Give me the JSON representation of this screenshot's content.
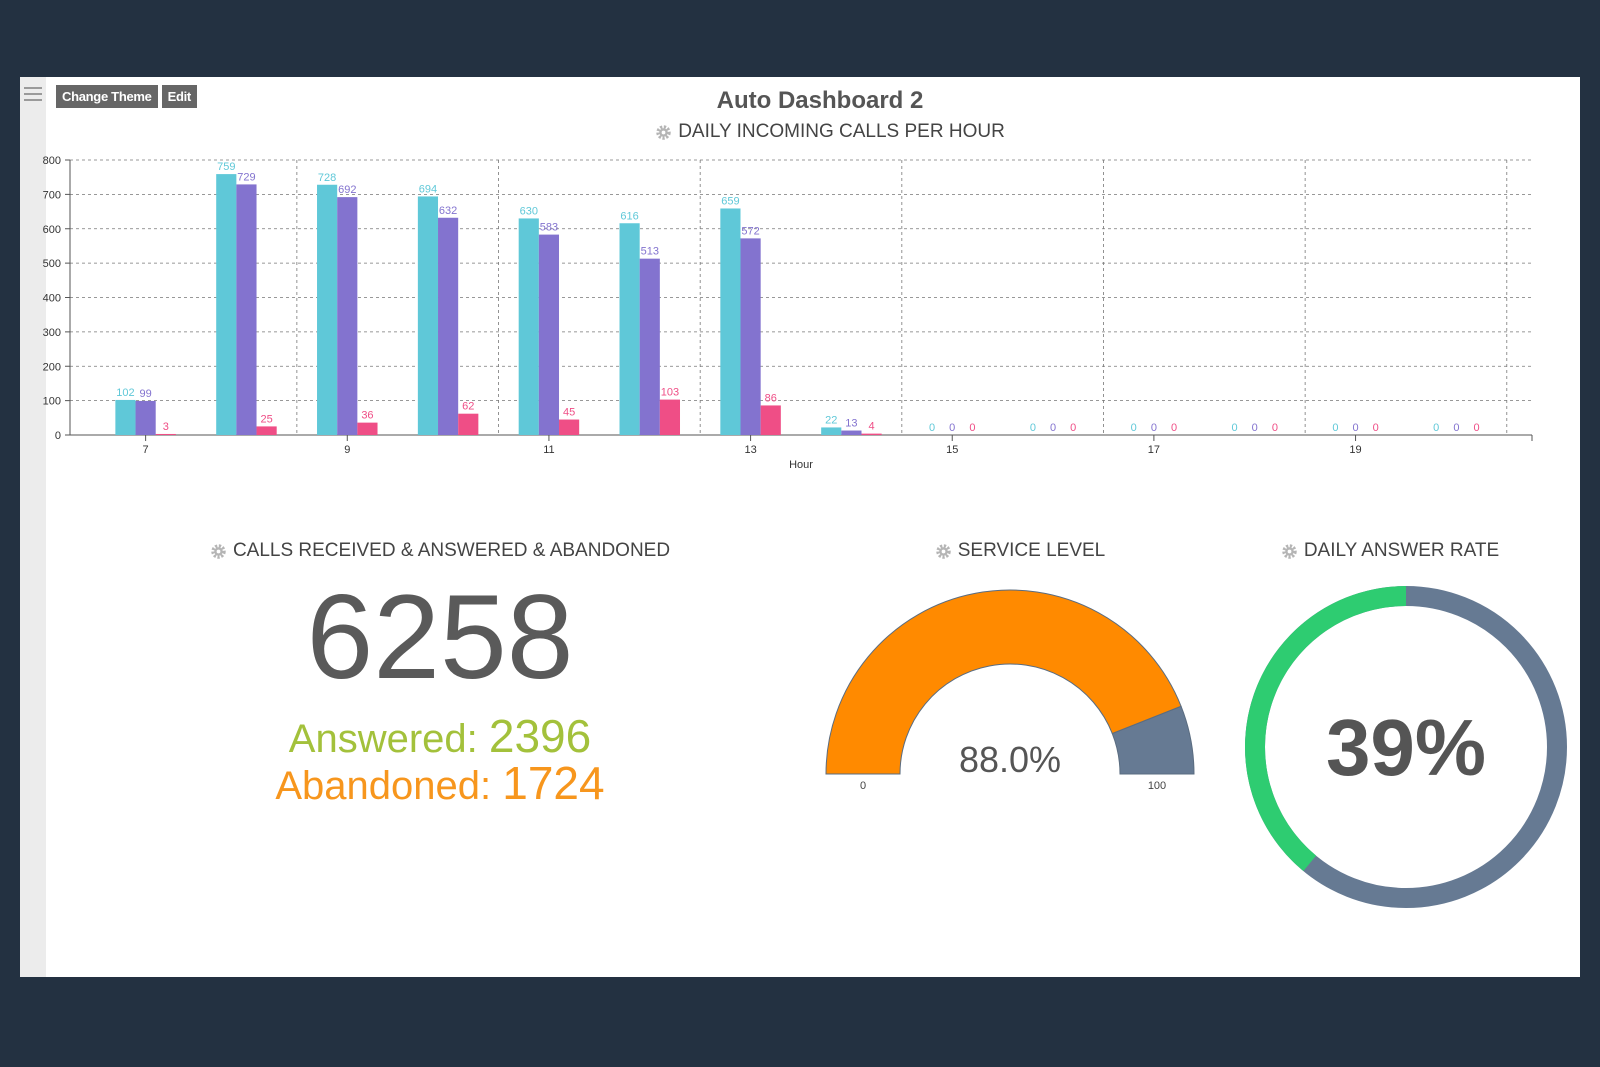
{
  "toolbar": {
    "change_theme_label": "Change Theme",
    "edit_label": "Edit"
  },
  "dashboard": {
    "title": "Auto Dashboard 2"
  },
  "panels": {
    "hourly": {
      "title": "DAILY INCOMING CALLS PER HOUR"
    },
    "calls": {
      "title": "CALLS RECEIVED & ANSWERED & ABANDONED",
      "total": "6258",
      "answered_label": "Answered:",
      "answered_value": "2396",
      "abandoned_label": "Abandoned:",
      "abandoned_value": "1724"
    },
    "service_level": {
      "title": "SERVICE LEVEL",
      "value_text": "88.0%",
      "value": 88.0,
      "min_label": "0",
      "max_label": "100"
    },
    "answer_rate": {
      "title": "DAILY ANSWER RATE",
      "value_text": "39%",
      "value": 39
    }
  },
  "colors": {
    "series1": "#5fc8d8",
    "series2": "#8373cf",
    "series3": "#ef4e86",
    "gauge_fill": "#ff8a00",
    "gauge_rest": "#667a93",
    "donut_fill": "#2ecc71",
    "donut_rest": "#667a93",
    "answered": "#a3c13b",
    "abandoned": "#f7961d"
  },
  "chart_data": {
    "type": "bar",
    "x": [
      7,
      8,
      9,
      10,
      11,
      12,
      13,
      14,
      15,
      16,
      17,
      18,
      19,
      20
    ],
    "x_tick_labels": [
      "7",
      "9",
      "11",
      "13",
      "15",
      "17",
      "19"
    ],
    "xlabel": "Hour",
    "ylabel": "",
    "ylim": [
      0,
      800
    ],
    "y_ticks": [
      0,
      100,
      200,
      300,
      400,
      500,
      600,
      700,
      800
    ],
    "y_tick_labels": [
      "0",
      "100",
      "200",
      "300",
      "400",
      "500",
      "600",
      "700",
      "800"
    ],
    "grid": true,
    "series": [
      {
        "values": [
          102,
          759,
          728,
          694,
          630,
          616,
          659,
          22,
          0,
          0,
          0,
          0,
          0,
          0
        ]
      },
      {
        "values": [
          99,
          729,
          692,
          632,
          583,
          513,
          572,
          13,
          0,
          0,
          0,
          0,
          0,
          0
        ]
      },
      {
        "values": [
          3,
          25,
          36,
          62,
          45,
          103,
          86,
          4,
          0,
          0,
          0,
          0,
          0,
          0
        ]
      }
    ]
  }
}
